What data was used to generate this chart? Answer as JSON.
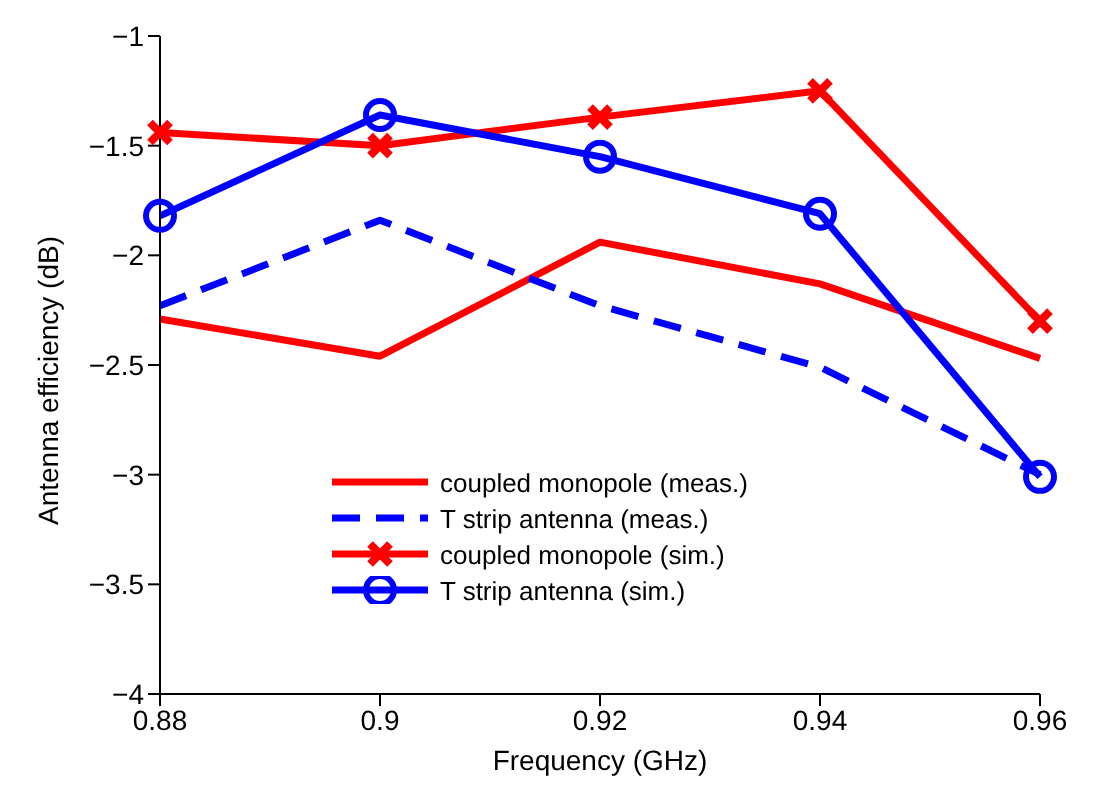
{
  "chart_data": {
    "type": "line",
    "xlabel": "Frequency (GHz)",
    "ylabel": "Antenna efficiency (dB)",
    "x": [
      0.88,
      0.9,
      0.92,
      0.94,
      0.96
    ],
    "xlim": [
      0.88,
      0.96
    ],
    "xticks": [
      0.88,
      0.9,
      0.92,
      0.94,
      0.96
    ],
    "ylim": [
      -4,
      -1
    ],
    "yticks": [
      -4,
      -3.5,
      -3,
      -2.5,
      -2,
      -1.5,
      -1
    ],
    "grid": false,
    "legend": "bottom",
    "series": [
      {
        "name": "coupled monopole (meas.)",
        "color": "#ff0000",
        "line_style": "solid",
        "marker": "none",
        "values": [
          -2.29,
          -2.46,
          -1.94,
          -2.13,
          -2.47
        ]
      },
      {
        "name": "T strip antenna (meas.)",
        "color": "#0000ff",
        "line_style": "dashed",
        "marker": "none",
        "values": [
          -2.23,
          -1.84,
          -2.23,
          -2.51,
          -3.0
        ]
      },
      {
        "name": "coupled monopole (sim.)",
        "color": "#ff0000",
        "line_style": "solid",
        "marker": "cross",
        "values": [
          -1.44,
          -1.5,
          -1.37,
          -1.25,
          -2.3
        ]
      },
      {
        "name": "T strip antenna (sim.)",
        "color": "#0000ff",
        "line_style": "solid",
        "marker": "circle",
        "values": [
          -1.82,
          -1.36,
          -1.55,
          -1.81,
          -3.01
        ]
      }
    ]
  }
}
